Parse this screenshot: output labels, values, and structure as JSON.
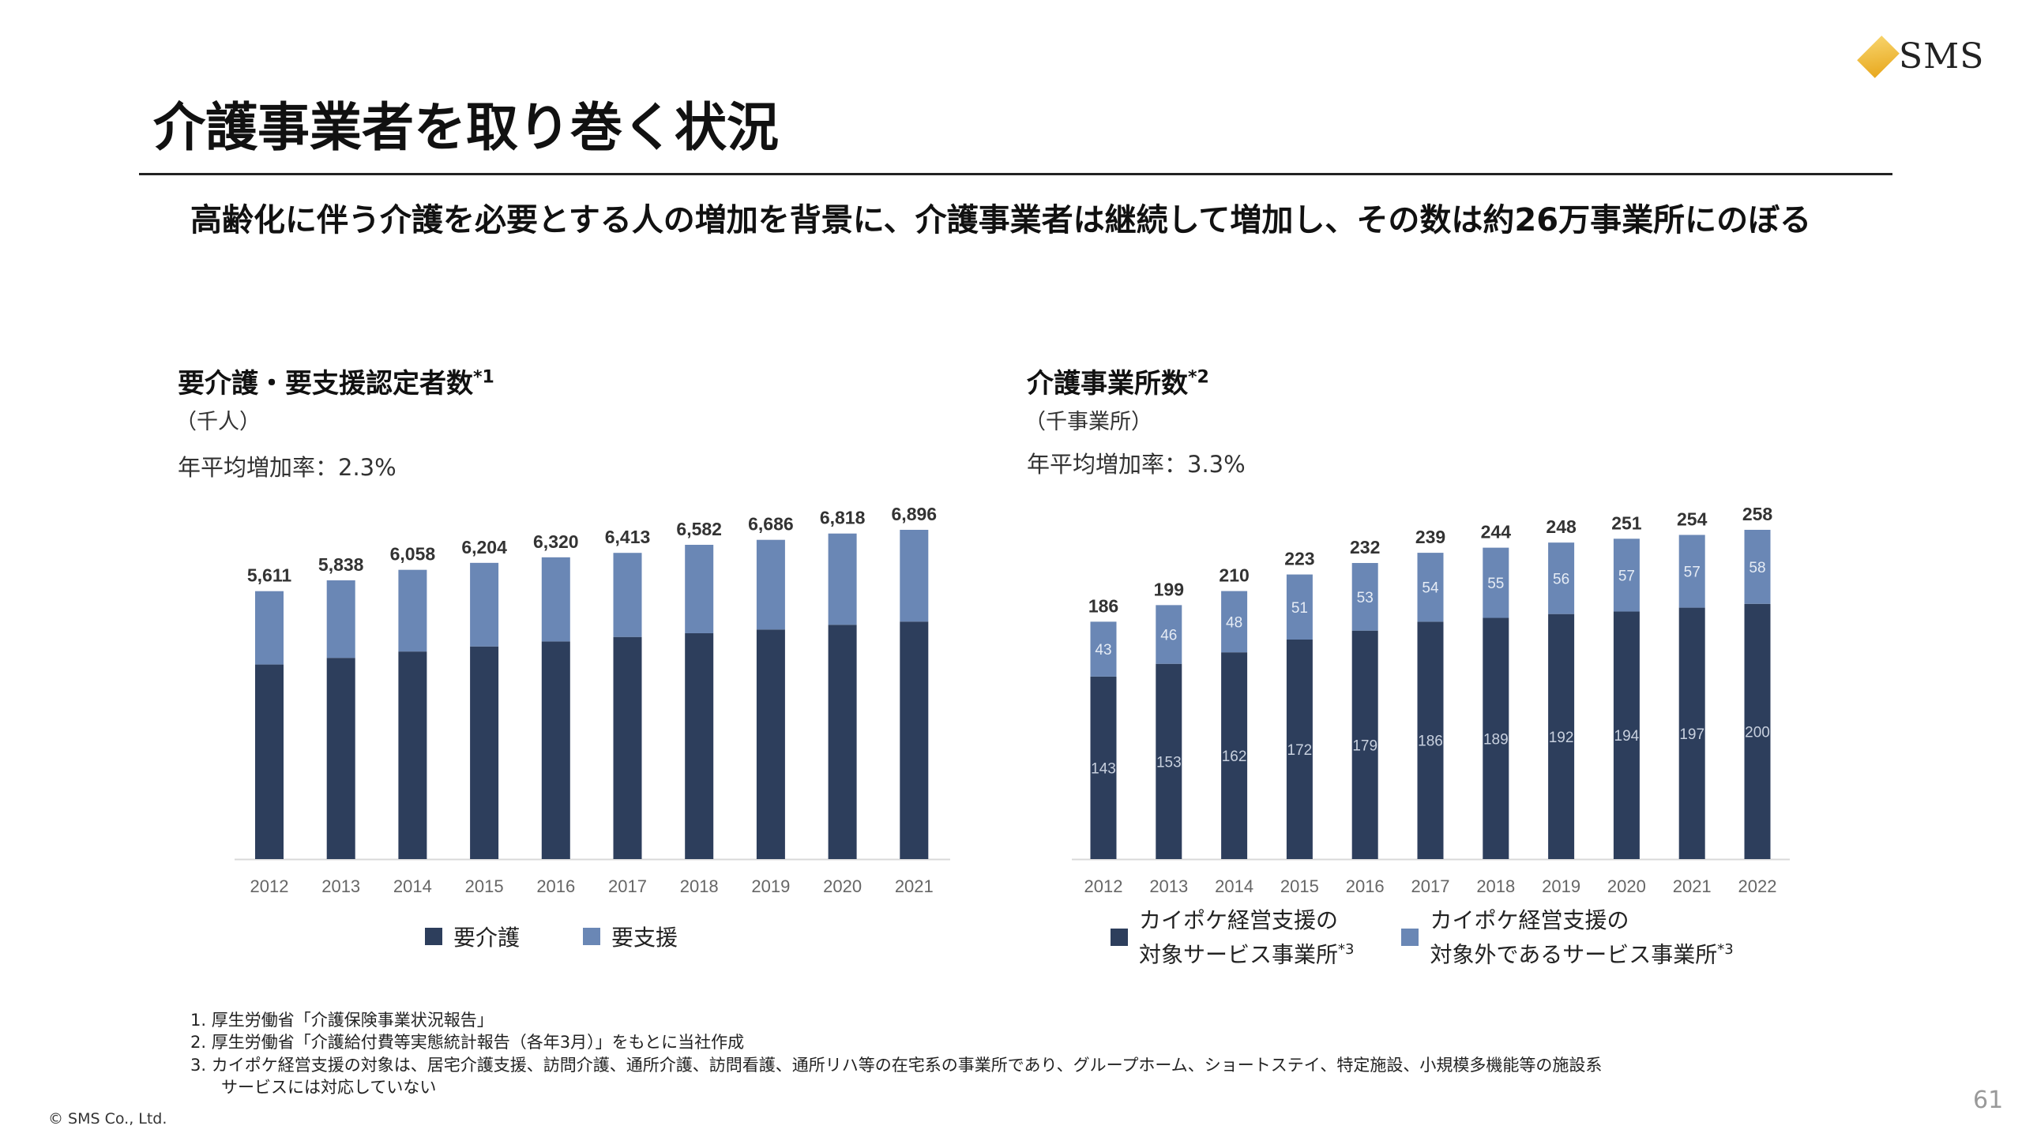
{
  "logo": {
    "text": "SMS"
  },
  "title": "介護事業者を取り巻く状況",
  "headline": "高齢化に伴う介護を必要とする人の増加を背景に、介護事業者は継続して増加し、その数は約26万事業所にのぼる",
  "colors": {
    "dark": "#2d3e5c",
    "light": "#6a87b5"
  },
  "left_panel": {
    "title": "要介護・要支援認定者数",
    "note": "*1",
    "unit": "（千人）",
    "rate": "年平均増加率：2.3%"
  },
  "right_panel": {
    "title": "介護事業所数",
    "note": "*2",
    "unit": "（千事業所）",
    "rate": "年平均増加率：3.3%"
  },
  "chart_data": [
    {
      "type": "bar",
      "stacked": true,
      "title": "要介護・要支援認定者数",
      "ylabel": "千人",
      "categories": [
        "2012",
        "2013",
        "2014",
        "2015",
        "2016",
        "2017",
        "2018",
        "2019",
        "2020",
        "2021"
      ],
      "totals": [
        "5,611",
        "5,838",
        "6,058",
        "6,204",
        "6,320",
        "6,413",
        "6,582",
        "6,686",
        "6,818",
        "6,896"
      ],
      "series": [
        {
          "name": "要介護",
          "values": [
            4075,
            4214,
            4347,
            4453,
            4558,
            4652,
            4730,
            4808,
            4907,
            4974
          ]
        },
        {
          "name": "要支援",
          "values": [
            1536,
            1624,
            1711,
            1751,
            1762,
            1761,
            1852,
            1878,
            1911,
            1922
          ]
        }
      ],
      "legend": [
        "要介護",
        "要支援"
      ],
      "legend_position": "bottom"
    },
    {
      "type": "bar",
      "stacked": true,
      "title": "介護事業所数",
      "ylabel": "千事業所",
      "categories": [
        "2012",
        "2013",
        "2014",
        "2015",
        "2016",
        "2017",
        "2018",
        "2019",
        "2020",
        "2021",
        "2022"
      ],
      "totals": [
        "186",
        "199",
        "210",
        "223",
        "232",
        "239",
        "244",
        "248",
        "251",
        "254",
        "258"
      ],
      "series": [
        {
          "name": "カイポケ経営支援の対象サービス事業所",
          "values": [
            143,
            153,
            162,
            172,
            179,
            186,
            189,
            192,
            194,
            197,
            200
          ]
        },
        {
          "name": "カイポケ経営支援の対象外であるサービス事業所",
          "values": [
            43,
            46,
            48,
            51,
            53,
            54,
            55,
            56,
            57,
            57,
            58
          ]
        }
      ],
      "legend": [
        {
          "line1": "カイポケ経営支援の",
          "line2": "対象サービス事業所",
          "note": "*3"
        },
        {
          "line1": "カイポケ経営支援の",
          "line2": "対象外であるサービス事業所",
          "note": "*3"
        }
      ],
      "legend_position": "bottom"
    }
  ],
  "footnotes": [
    "1.  厚生労働省「介護保険事業状況報告」",
    "2.  厚生労働省「介護給付費等実態統計報告（各年3月）」をもとに当社作成",
    "3.  カイポケ経営支援の対象は、居宅介護支援、訪問介護、通所介護、訪問看護、通所リハ等の在宅系の事業所であり、グループホーム、ショートステイ、特定施設、小規模多機能等の施設系",
    "     サービスには対応していない"
  ],
  "copyright": "© SMS Co., Ltd.",
  "page_number": "61"
}
